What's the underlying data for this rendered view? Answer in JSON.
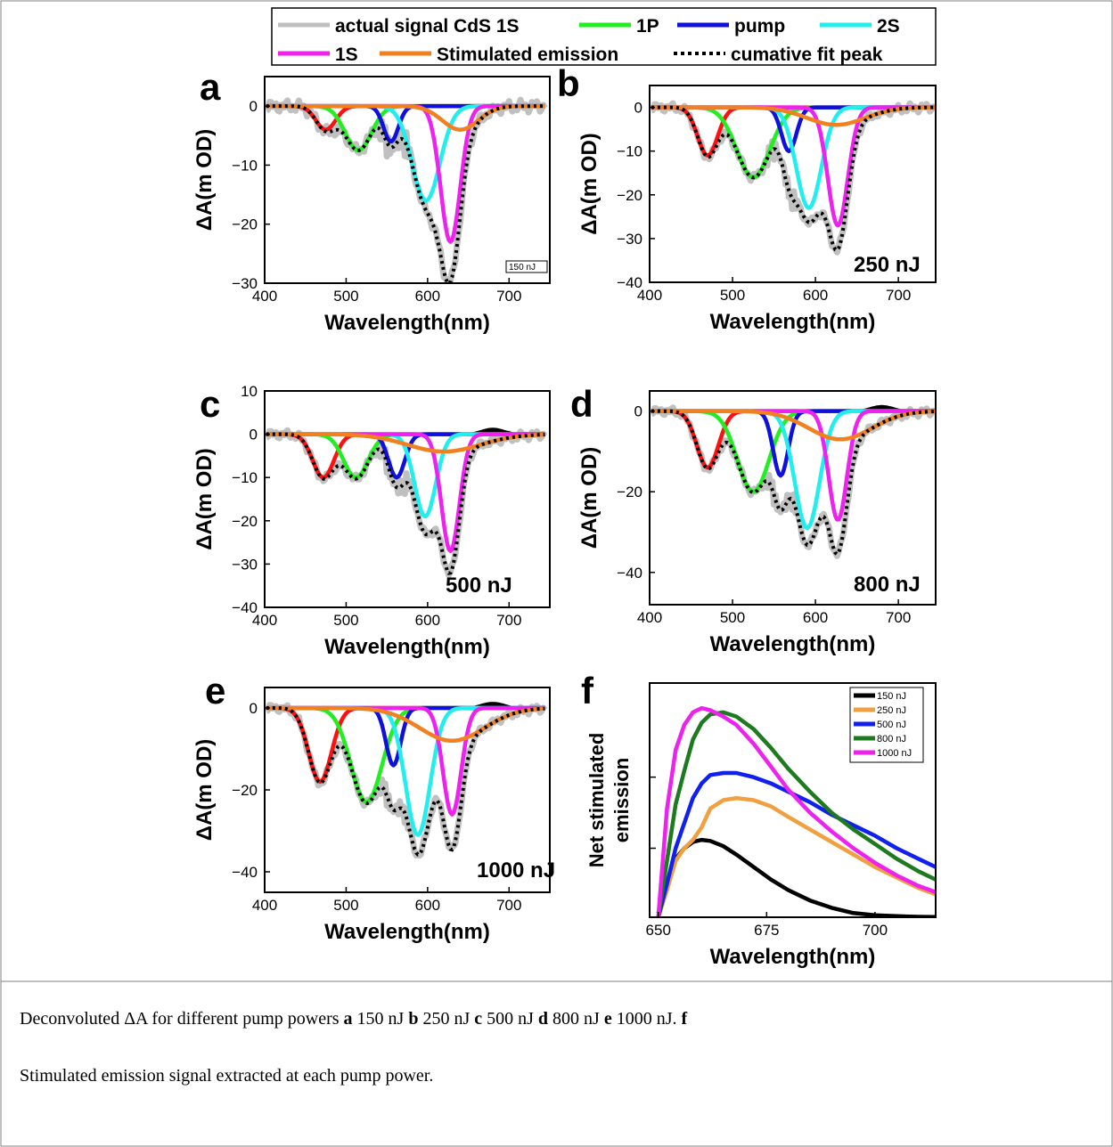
{
  "legend": {
    "entries": [
      {
        "label": "actual signal CdS 1S",
        "color": "#c0c0c0",
        "style": "solid"
      },
      {
        "label": "1P",
        "color": "#22ee22",
        "style": "solid"
      },
      {
        "label": "pump",
        "color": "#1010dd",
        "style": "solid"
      },
      {
        "label": "2S",
        "color": "#22eeee",
        "style": "solid"
      },
      {
        "label": "1S",
        "color": "#ee22ee",
        "style": "solid"
      },
      {
        "label": "Stimulated emission",
        "color": "#f08020",
        "style": "solid"
      },
      {
        "label": "cumative fit peak",
        "color": "#000000",
        "style": "dotted"
      }
    ]
  },
  "colors": {
    "signal": "#c0c0c0",
    "red": "#ff1010",
    "p1": "#22ee22",
    "pump": "#1010dd",
    "s2": "#22eeee",
    "s1": "#ee22ee",
    "se": "#f08020",
    "fit": "#000000"
  },
  "chart_data": [
    {
      "panel": "a",
      "type": "line",
      "energy_label": "150 nJ",
      "label_style": "boxed-small",
      "xlabel": "Wavelength(nm)",
      "ylabel": "ΔA(m OD)",
      "xlim": [
        400,
        750
      ],
      "ylim": [
        -30,
        5
      ],
      "xticks": [
        "400",
        "500",
        "600",
        "700"
      ],
      "yticks": [
        "0",
        "−10",
        "−20",
        "−30"
      ],
      "ytick_values": [
        0,
        -10,
        -20,
        -30
      ],
      "peaks": {
        "red": {
          "center": 475,
          "amplitude": -4,
          "width": 12
        },
        "p1": {
          "center": 515,
          "amplitude": -7.5,
          "width": 16
        },
        "pump": {
          "center": 555,
          "amplitude": -6,
          "width": 9
        },
        "s2": {
          "center": 598,
          "amplitude": -16,
          "width": 17
        },
        "s1": {
          "center": 628,
          "amplitude": -23,
          "width": 12
        },
        "se": {
          "center": 640,
          "amplitude": -4,
          "width": 22
        }
      }
    },
    {
      "panel": "b",
      "type": "line",
      "energy_label": "250 nJ",
      "label_style": "bold",
      "xlabel": "Wavelength(nm)",
      "ylabel": "ΔA(m OD)",
      "xlim": [
        400,
        745
      ],
      "ylim": [
        -40,
        5
      ],
      "xticks": [
        "400",
        "500",
        "600",
        "700"
      ],
      "yticks": [
        "0",
        "−10",
        "−20",
        "−30",
        "−40"
      ],
      "ytick_values": [
        0,
        -10,
        -20,
        -30,
        -40
      ],
      "peaks": {
        "red": {
          "center": 470,
          "amplitude": -11,
          "width": 12
        },
        "p1": {
          "center": 525,
          "amplitude": -16,
          "width": 20
        },
        "pump": {
          "center": 568,
          "amplitude": -10,
          "width": 9
        },
        "s2": {
          "center": 592,
          "amplitude": -23,
          "width": 15
        },
        "s1": {
          "center": 627,
          "amplitude": -27,
          "width": 12
        },
        "se": {
          "center": 625,
          "amplitude": -4,
          "width": 35
        }
      }
    },
    {
      "panel": "c",
      "type": "line",
      "energy_label": "500 nJ",
      "label_style": "bold",
      "xlabel": "Wavelength(nm)",
      "ylabel": "ΔA(m OD)",
      "xlim": [
        400,
        750
      ],
      "ylim": [
        -40,
        10
      ],
      "xticks": [
        "400",
        "500",
        "600",
        "700"
      ],
      "yticks": [
        "10",
        "0",
        "−10",
        "−20",
        "−30",
        "−40"
      ],
      "ytick_values": [
        10,
        0,
        -10,
        -20,
        -30,
        -40
      ],
      "peaks": {
        "red": {
          "center": 472,
          "amplitude": -10,
          "width": 13
        },
        "p1": {
          "center": 512,
          "amplitude": -10,
          "width": 15
        },
        "pump": {
          "center": 562,
          "amplitude": -10,
          "width": 10
        },
        "s2": {
          "center": 597,
          "amplitude": -19,
          "width": 13
        },
        "s1": {
          "center": 628,
          "amplitude": -27,
          "width": 11
        },
        "se": {
          "center": 620,
          "amplitude": -4,
          "width": 45
        }
      }
    },
    {
      "panel": "d",
      "type": "line",
      "energy_label": "800 nJ",
      "label_style": "bold",
      "xlabel": "Wavelength(nm)",
      "ylabel": "ΔA(m OD)",
      "xlim": [
        400,
        745
      ],
      "ylim": [
        -48,
        5
      ],
      "xticks": [
        "400",
        "500",
        "600",
        "700"
      ],
      "yticks": [
        "0",
        "−20",
        "−40"
      ],
      "ytick_values": [
        0,
        -20,
        -40
      ],
      "peaks": {
        "red": {
          "center": 470,
          "amplitude": -14,
          "width": 13
        },
        "p1": {
          "center": 525,
          "amplitude": -20,
          "width": 19
        },
        "pump": {
          "center": 558,
          "amplitude": -16,
          "width": 9
        },
        "s2": {
          "center": 590,
          "amplitude": -29,
          "width": 15
        },
        "s1": {
          "center": 627,
          "amplitude": -27,
          "width": 11
        },
        "se": {
          "center": 630,
          "amplitude": -7,
          "width": 38
        }
      }
    },
    {
      "panel": "e",
      "type": "line",
      "energy_label": "1000 nJ",
      "label_style": "bold",
      "xlabel": "Wavelength(nm)",
      "ylabel": "ΔA(m OD)",
      "xlim": [
        400,
        750
      ],
      "ylim": [
        -45,
        5
      ],
      "xticks": [
        "400",
        "500",
        "600",
        "700"
      ],
      "yticks": [
        "0",
        "−20",
        "−40"
      ],
      "ytick_values": [
        0,
        -20,
        -40
      ],
      "peaks": {
        "red": {
          "center": 468,
          "amplitude": -18,
          "width": 14
        },
        "p1": {
          "center": 525,
          "amplitude": -23,
          "width": 19
        },
        "pump": {
          "center": 558,
          "amplitude": -14,
          "width": 9
        },
        "s2": {
          "center": 588,
          "amplitude": -31,
          "width": 15
        },
        "s1": {
          "center": 630,
          "amplitude": -26,
          "width": 11
        },
        "se": {
          "center": 630,
          "amplitude": -8,
          "width": 40
        }
      }
    },
    {
      "panel": "f",
      "type": "line",
      "xlabel": "Wavelength(nm)",
      "ylabel": "Net stimulated emission",
      "xlim": [
        648,
        714
      ],
      "ylim": [
        0,
        1.12
      ],
      "xticks": [
        "650",
        "675",
        "700"
      ],
      "xtick_values": [
        650,
        675,
        700
      ],
      "ytick_values": [
        0.33,
        0.67
      ],
      "x": [
        650,
        652,
        654,
        656,
        658,
        660,
        662,
        665,
        668,
        672,
        676,
        680,
        685,
        690,
        695,
        700,
        705,
        710,
        714
      ],
      "series": [
        {
          "name": "150 nJ",
          "color": "#000000",
          "values": [
            0.02,
            0.17,
            0.28,
            0.33,
            0.36,
            0.37,
            0.365,
            0.34,
            0.3,
            0.24,
            0.18,
            0.13,
            0.08,
            0.045,
            0.02,
            0.01,
            0.005,
            0.002,
            0.001
          ]
        },
        {
          "name": "250 nJ",
          "color": "#f0a040",
          "values": [
            0.0,
            0.13,
            0.27,
            0.33,
            0.37,
            0.43,
            0.52,
            0.56,
            0.57,
            0.56,
            0.53,
            0.48,
            0.42,
            0.36,
            0.3,
            0.24,
            0.19,
            0.14,
            0.11
          ]
        },
        {
          "name": "500 nJ",
          "color": "#1020ee",
          "values": [
            0.0,
            0.16,
            0.33,
            0.45,
            0.57,
            0.64,
            0.68,
            0.69,
            0.69,
            0.67,
            0.64,
            0.6,
            0.55,
            0.49,
            0.44,
            0.39,
            0.33,
            0.28,
            0.24
          ]
        },
        {
          "name": "800 nJ",
          "color": "#1e7a1e",
          "values": [
            0.0,
            0.27,
            0.54,
            0.7,
            0.85,
            0.93,
            0.97,
            0.98,
            0.96,
            0.9,
            0.81,
            0.71,
            0.6,
            0.5,
            0.42,
            0.35,
            0.28,
            0.22,
            0.18
          ]
        },
        {
          "name": "1000 nJ",
          "color": "#ee22ee",
          "values": [
            0.0,
            0.52,
            0.8,
            0.92,
            0.98,
            1.0,
            0.99,
            0.96,
            0.92,
            0.83,
            0.72,
            0.61,
            0.5,
            0.41,
            0.33,
            0.26,
            0.2,
            0.15,
            0.12
          ]
        }
      ]
    }
  ],
  "caption": {
    "line1": [
      {
        "text": "Deconvoluted ΔA for different pump powers ",
        "bold": false
      },
      {
        "text": "a",
        "bold": true
      },
      {
        "text": " 150 nJ ",
        "bold": false
      },
      {
        "text": "b",
        "bold": true
      },
      {
        "text": " 250 nJ ",
        "bold": false
      },
      {
        "text": "c",
        "bold": true
      },
      {
        "text": " 500 nJ ",
        "bold": false
      },
      {
        "text": "d",
        "bold": true
      },
      {
        "text": " 800 nJ ",
        "bold": false
      },
      {
        "text": "e",
        "bold": true
      },
      {
        "text": " 1000 nJ. ",
        "bold": false
      },
      {
        "text": "f",
        "bold": true
      }
    ],
    "line2": "Stimulated emission signal extracted at each pump power."
  }
}
